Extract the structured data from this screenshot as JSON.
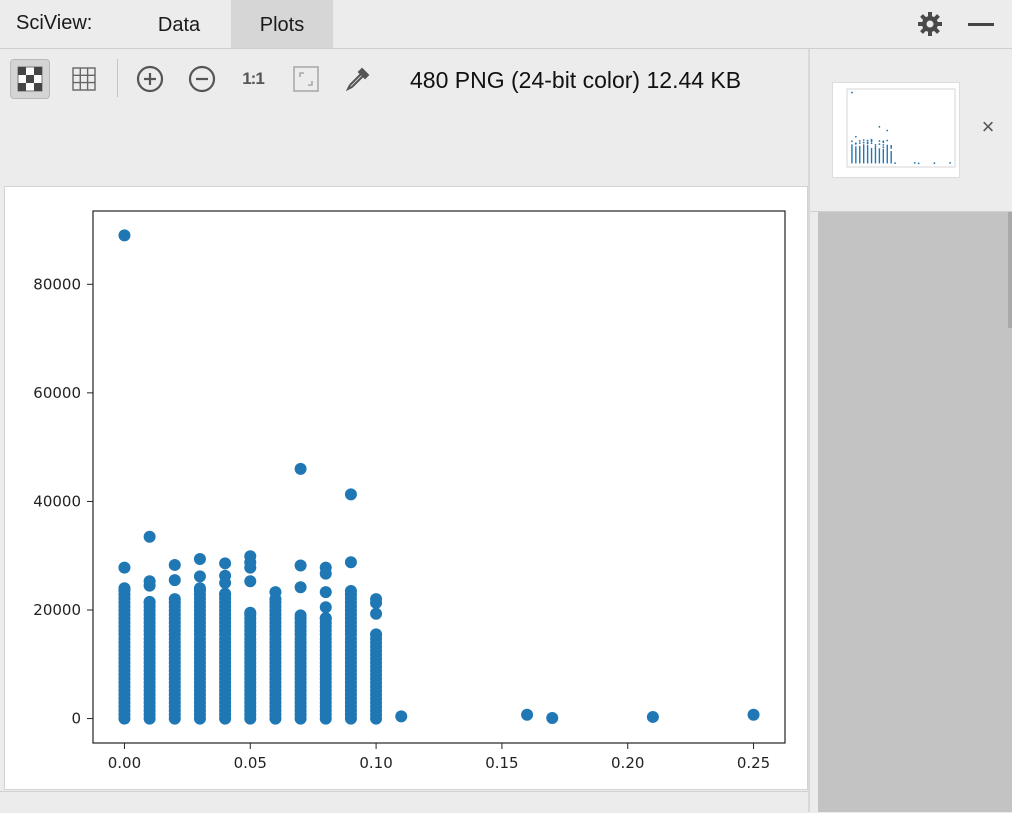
{
  "header": {
    "app_title": "SciView:",
    "tabs": [
      {
        "label": "Data",
        "active": false
      },
      {
        "label": "Plots",
        "active": true
      }
    ]
  },
  "toolbar": {
    "buttons": [
      {
        "name": "chessboard-background",
        "icon": "checker-icon",
        "active": true
      },
      {
        "name": "show-grid",
        "icon": "grid-icon",
        "active": false
      },
      {
        "name": "zoom-in",
        "icon": "zoom-in-icon",
        "active": false
      },
      {
        "name": "zoom-out",
        "icon": "zoom-out-icon",
        "active": false
      },
      {
        "name": "actual-size",
        "icon": "actual-size-icon",
        "label": "1:1",
        "active": false
      },
      {
        "name": "fit-zoom",
        "icon": "fit-icon",
        "active": false
      },
      {
        "name": "color-picker",
        "icon": "eyedropper-icon",
        "active": false
      }
    ],
    "file_info": "480 PNG (24-bit color) 12.44 KB"
  },
  "thumbnail": {
    "close_label": "×"
  },
  "colors": {
    "accent": "#1f77b4",
    "active_tab": "#d6d6d6",
    "background": "#ececec"
  },
  "chart_data": {
    "type": "scatter",
    "title": "",
    "xlabel": "",
    "ylabel": "",
    "xlim": [
      -0.0125,
      0.2625
    ],
    "ylim": [
      -4500,
      93500
    ],
    "xticks": [
      0.0,
      0.05,
      0.1,
      0.15,
      0.2,
      0.25
    ],
    "xtick_labels": [
      "0.00",
      "0.05",
      "0.10",
      "0.15",
      "0.20",
      "0.25"
    ],
    "yticks": [
      0,
      20000,
      40000,
      60000,
      80000
    ],
    "ytick_labels": [
      "0",
      "20000",
      "40000",
      "60000",
      "80000"
    ],
    "grid": false,
    "color": "#1f77b4",
    "columns": [
      {
        "x": 0.0,
        "max_dense": 24000,
        "extra": [
          27800,
          89000
        ]
      },
      {
        "x": 0.01,
        "max_dense": 21500,
        "extra": [
          24500,
          25300,
          33500
        ]
      },
      {
        "x": 0.02,
        "max_dense": 22000,
        "extra": [
          25500,
          28300
        ]
      },
      {
        "x": 0.03,
        "max_dense": 24000,
        "extra": [
          26200,
          29400
        ]
      },
      {
        "x": 0.04,
        "max_dense": 23000,
        "extra": [
          25000,
          26300,
          28600
        ]
      },
      {
        "x": 0.05,
        "max_dense": 19500,
        "extra": [
          25300,
          27800,
          28800,
          29900
        ]
      },
      {
        "x": 0.06,
        "max_dense": 22000,
        "extra": [
          23300
        ]
      },
      {
        "x": 0.07,
        "max_dense": 19000,
        "extra": [
          24200,
          28200,
          46000
        ]
      },
      {
        "x": 0.08,
        "max_dense": 18500,
        "extra": [
          20500,
          23300,
          26700,
          27800
        ]
      },
      {
        "x": 0.09,
        "max_dense": 23500,
        "extra": [
          28800,
          41300
        ]
      },
      {
        "x": 0.1,
        "max_dense": 15500,
        "extra": [
          19300,
          21300,
          22000
        ]
      }
    ],
    "points": [
      {
        "x": 0.11,
        "y": 400
      },
      {
        "x": 0.16,
        "y": 700
      },
      {
        "x": 0.17,
        "y": 100
      },
      {
        "x": 0.21,
        "y": 300
      },
      {
        "x": 0.25,
        "y": 700
      }
    ]
  }
}
